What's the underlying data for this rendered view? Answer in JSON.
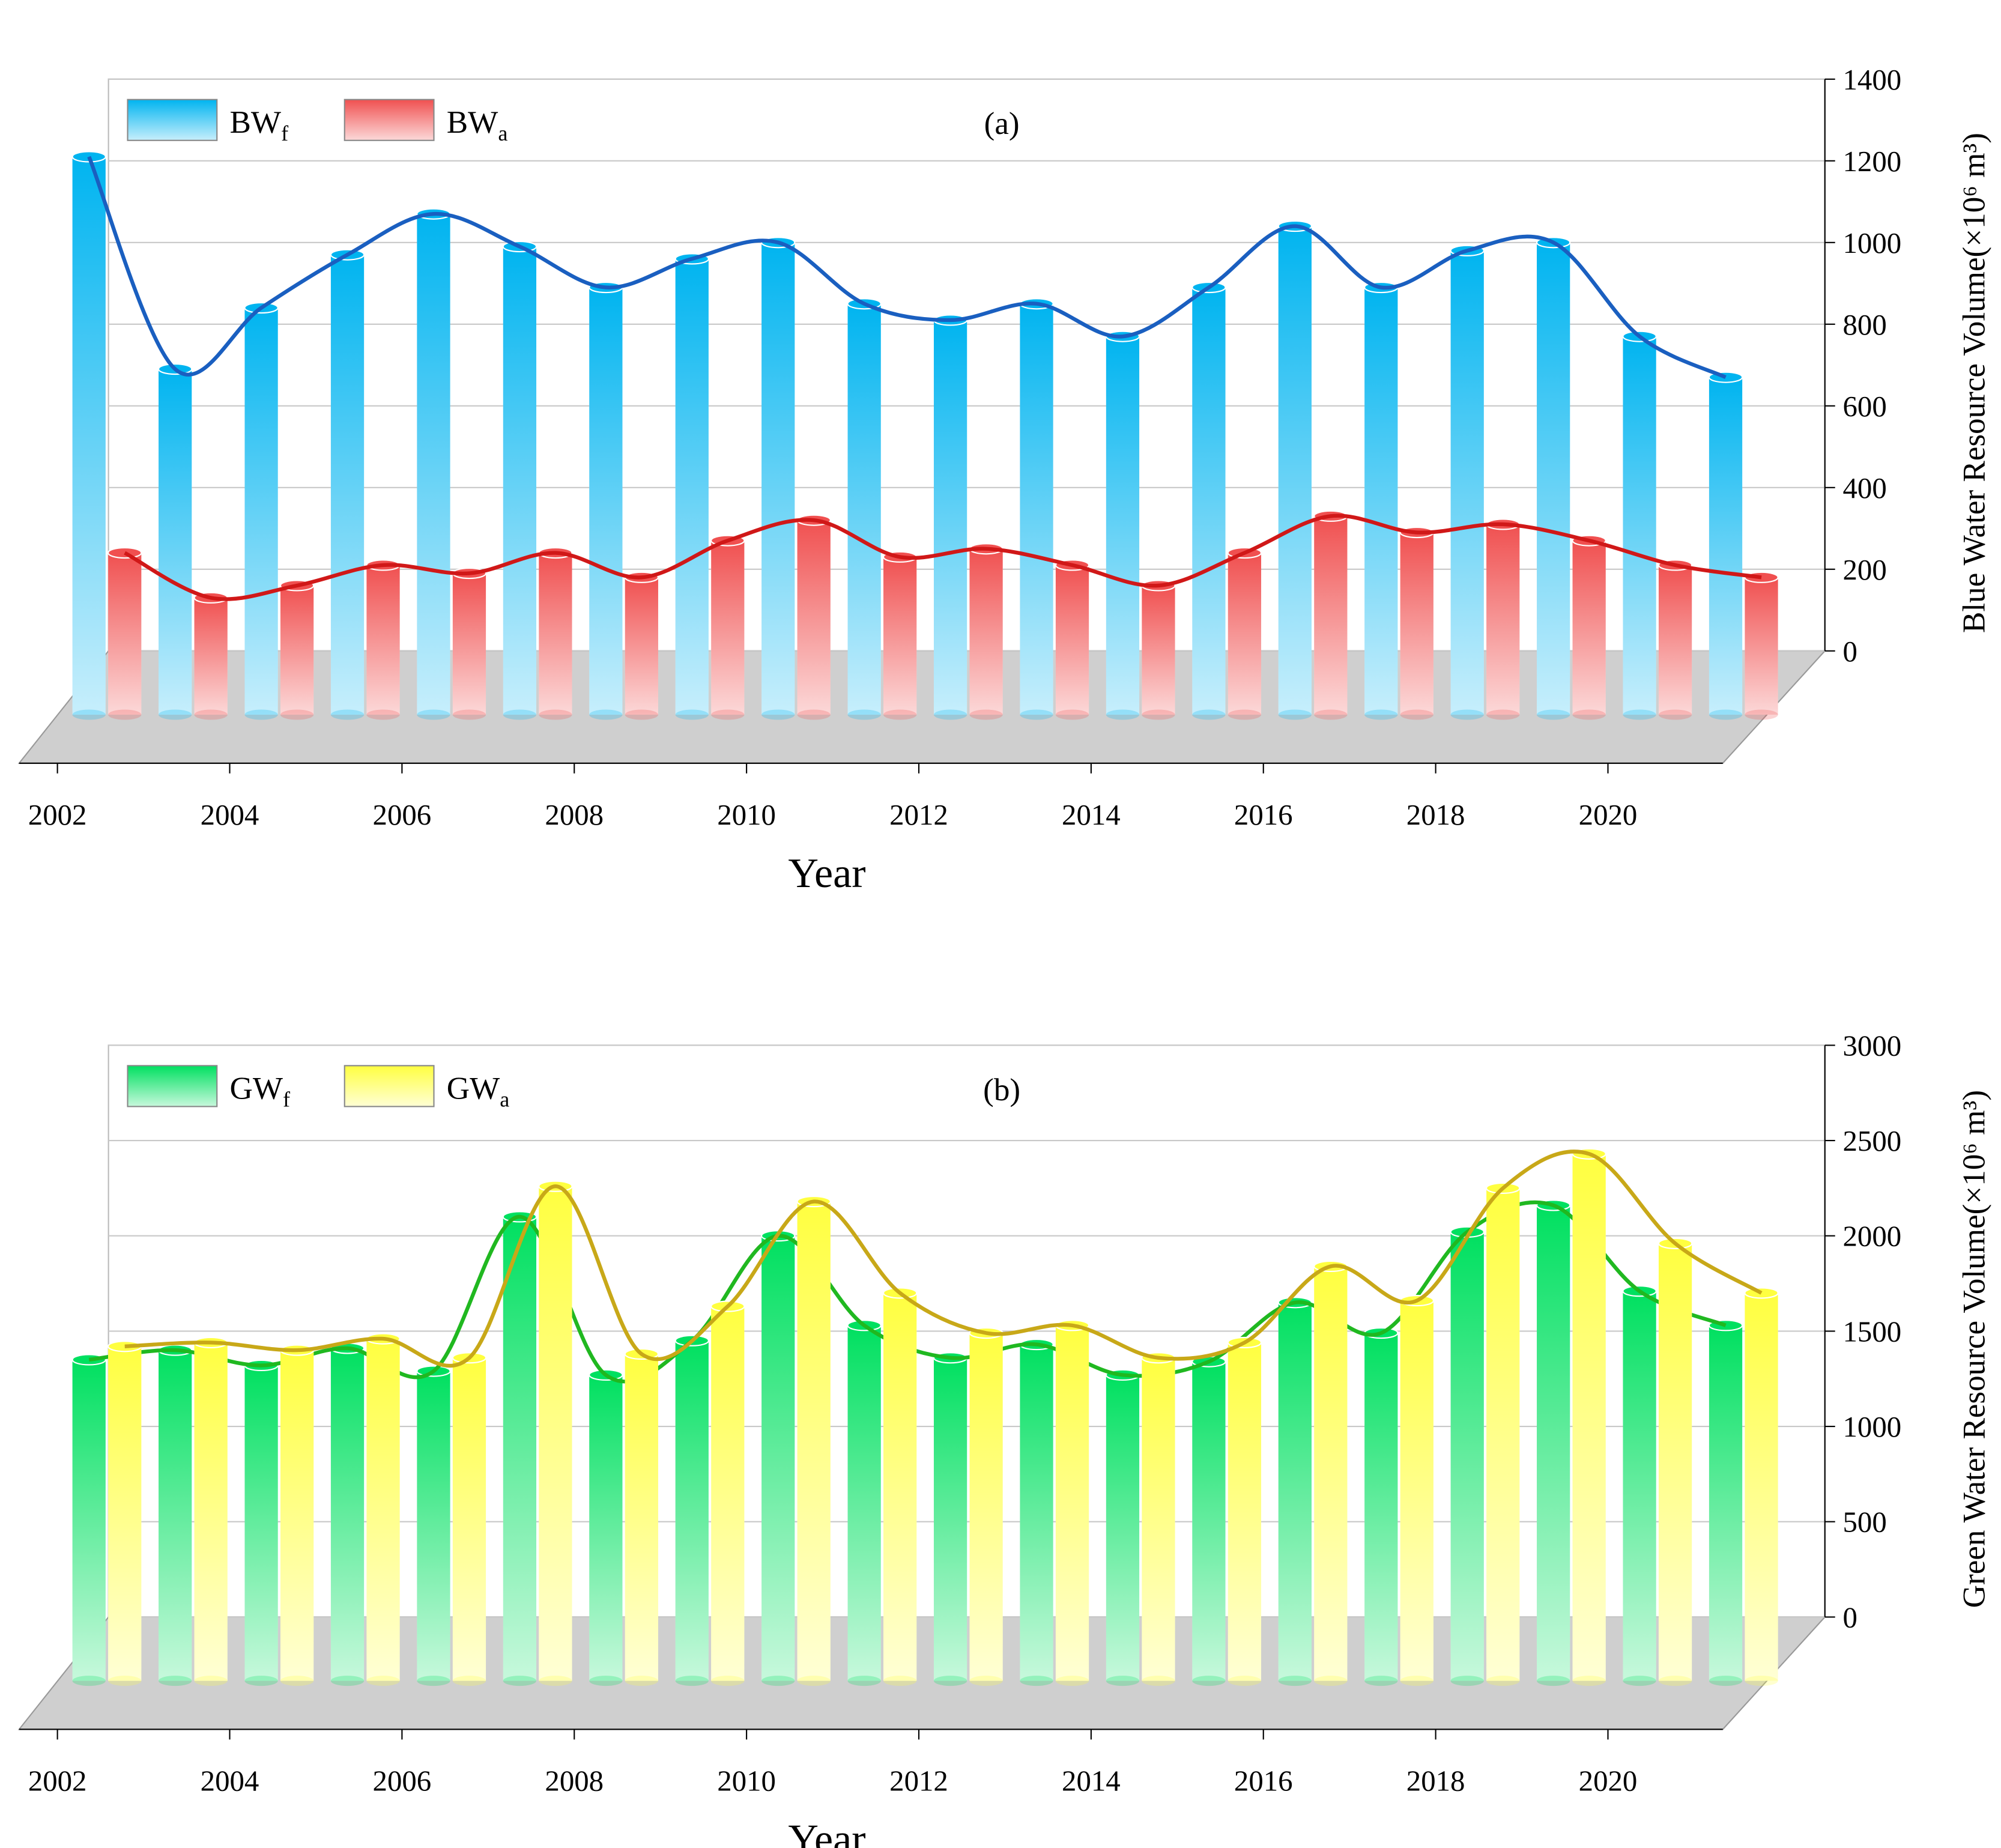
{
  "chart_data": [
    {
      "type": "bar",
      "panel_label": "(a)",
      "x_label": "Year",
      "y_label": "Blue Water Resource Volume(×10⁶ m³)",
      "x": [
        2002,
        2003,
        2004,
        2005,
        2006,
        2007,
        2008,
        2009,
        2010,
        2011,
        2012,
        2013,
        2014,
        2015,
        2016,
        2017,
        2018,
        2019,
        2020,
        2021
      ],
      "xlim": [
        2002,
        2022
      ],
      "xticks": [
        2002,
        2004,
        2006,
        2008,
        2010,
        2012,
        2014,
        2016,
        2018,
        2020
      ],
      "ylim": [
        0,
        1400
      ],
      "yticks": [
        0,
        200,
        400,
        600,
        800,
        1000,
        1200,
        1400
      ],
      "grid": true,
      "series": [
        {
          "name": "BWf",
          "color": "#00b4f0",
          "line_color": "#1a5fc0",
          "values": [
            1210,
            690,
            840,
            970,
            1070,
            990,
            890,
            960,
            1000,
            850,
            810,
            850,
            770,
            890,
            1040,
            890,
            980,
            1000,
            770,
            670
          ]
        },
        {
          "name": "BWa",
          "color": "#f05050",
          "line_color": "#d01818",
          "values": [
            240,
            130,
            160,
            210,
            190,
            240,
            180,
            270,
            320,
            230,
            250,
            210,
            160,
            240,
            330,
            290,
            310,
            270,
            210,
            180
          ]
        }
      ]
    },
    {
      "type": "bar",
      "panel_label": "(b)",
      "x_label": "Year",
      "y_label": "Green Water Resource Volume(×10⁶ m³)",
      "x": [
        2002,
        2003,
        2004,
        2005,
        2006,
        2007,
        2008,
        2009,
        2010,
        2011,
        2012,
        2013,
        2014,
        2015,
        2016,
        2017,
        2018,
        2019,
        2020,
        2021
      ],
      "xlim": [
        2002,
        2022
      ],
      "xticks": [
        2002,
        2004,
        2006,
        2008,
        2010,
        2012,
        2014,
        2016,
        2018,
        2020
      ],
      "ylim": [
        0,
        3000
      ],
      "yticks": [
        0,
        500,
        1000,
        1500,
        2000,
        2500,
        3000
      ],
      "grid": true,
      "series": [
        {
          "name": "GWf",
          "color": "#00e060",
          "line_color": "#20b820",
          "values": [
            1350,
            1400,
            1320,
            1410,
            1290,
            2100,
            1270,
            1450,
            2000,
            1530,
            1360,
            1430,
            1270,
            1340,
            1650,
            1490,
            2020,
            2160,
            1710,
            1530
          ]
        },
        {
          "name": "GWa",
          "color": "#ffff40",
          "line_color": "#c8a818",
          "values": [
            1420,
            1440,
            1400,
            1460,
            1360,
            2260,
            1380,
            1630,
            2180,
            1700,
            1490,
            1530,
            1360,
            1440,
            1840,
            1660,
            2250,
            2430,
            1960,
            1700
          ]
        }
      ]
    }
  ]
}
